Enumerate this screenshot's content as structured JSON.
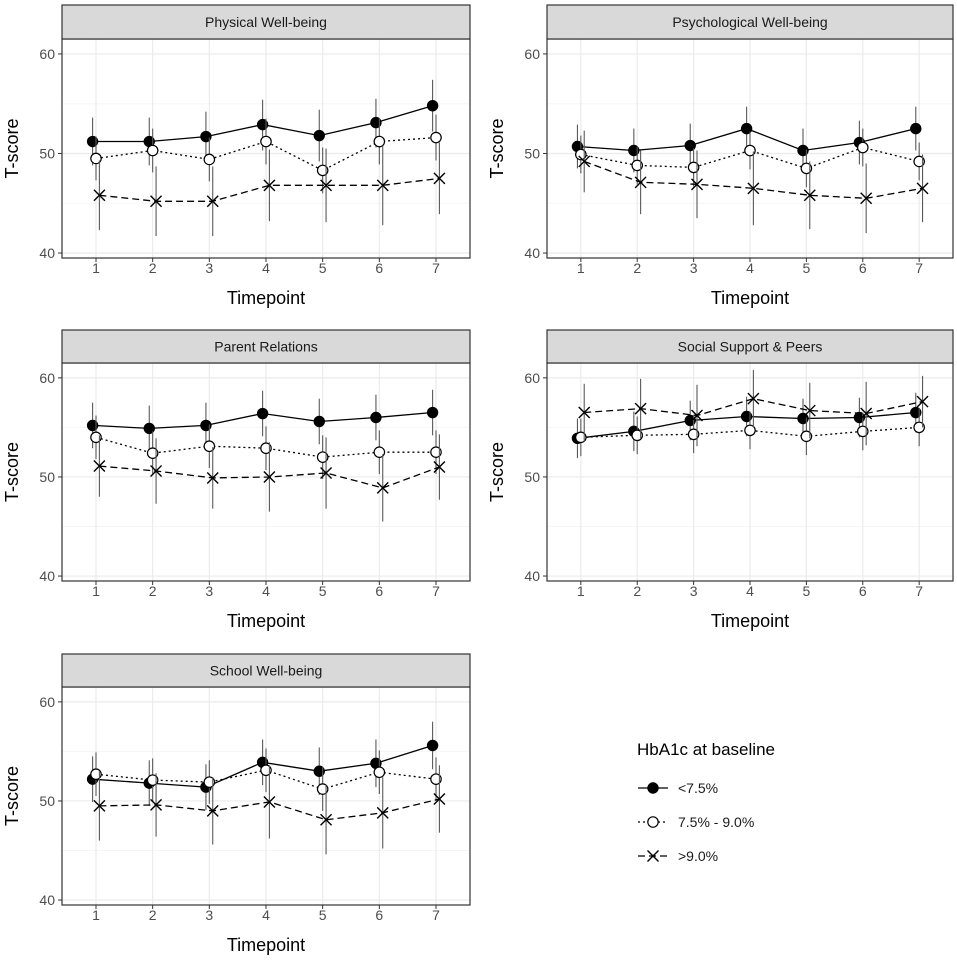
{
  "legend": {
    "title": "HbA1c at baseline",
    "entries": [
      {
        "label": "<7.5%",
        "marker": "filled-circle",
        "line": "solid"
      },
      {
        "label": "7.5% - 9.0%",
        "marker": "open-circle",
        "line": "dotted"
      },
      {
        "label": ">9.0%",
        "marker": "cross",
        "line": "dashed"
      }
    ]
  },
  "colors": {
    "strip_bg": "#d9d9d9",
    "panel_border": "#333333",
    "grid_major": "#ebebeb",
    "grid_minor": "#f5f5f5",
    "series": "#000000",
    "error_bar": "#595959",
    "tick_label": "#4d4d4d"
  },
  "chart_data": [
    {
      "type": "line",
      "title": "Physical Well-being",
      "xlabel": "Timepoint",
      "ylabel": "T-score",
      "x": [
        1,
        2,
        3,
        4,
        5,
        6,
        7
      ],
      "xticks": [
        "1",
        "2",
        "3",
        "4",
        "5",
        "6",
        "7"
      ],
      "yticks": [
        "40",
        "50",
        "60"
      ],
      "ylim": [
        39.5,
        61.5
      ],
      "series": [
        {
          "name": "<7.5%",
          "values": [
            51.2,
            51.2,
            51.7,
            52.9,
            51.8,
            53.1,
            54.8
          ],
          "lower": [
            48.8,
            48.8,
            49.1,
            50.3,
            49.2,
            50.6,
            52.2
          ],
          "upper": [
            53.6,
            53.6,
            54.2,
            55.4,
            54.4,
            55.5,
            57.4
          ]
        },
        {
          "name": "7.5% - 9.0%",
          "values": [
            49.5,
            50.3,
            49.4,
            51.2,
            48.3,
            51.2,
            51.6
          ],
          "lower": [
            47.3,
            48.1,
            47.2,
            48.9,
            46.0,
            48.9,
            49.3
          ],
          "upper": [
            51.7,
            52.5,
            51.6,
            53.5,
            50.6,
            53.5,
            53.9
          ]
        },
        {
          "name": ">9.0%",
          "values": [
            45.8,
            45.2,
            45.2,
            46.8,
            46.8,
            46.8,
            47.5
          ],
          "lower": [
            42.3,
            41.7,
            41.7,
            43.2,
            43.1,
            42.8,
            43.9
          ],
          "upper": [
            49.3,
            48.7,
            48.7,
            50.4,
            50.5,
            50.8,
            51.1
          ]
        }
      ]
    },
    {
      "type": "line",
      "title": "Psychological Well-being",
      "xlabel": "Timepoint",
      "ylabel": "T-score",
      "x": [
        1,
        2,
        3,
        4,
        5,
        6,
        7
      ],
      "xticks": [
        "1",
        "2",
        "3",
        "4",
        "5",
        "6",
        "7"
      ],
      "yticks": [
        "40",
        "50",
        "60"
      ],
      "ylim": [
        39.5,
        61.5
      ],
      "series": [
        {
          "name": "<7.5%",
          "values": [
            50.7,
            50.3,
            50.8,
            52.5,
            50.3,
            51.1,
            52.5
          ],
          "lower": [
            48.5,
            48.1,
            48.6,
            50.3,
            48.1,
            48.9,
            50.3
          ],
          "upper": [
            52.9,
            52.5,
            53.0,
            54.7,
            52.5,
            53.3,
            54.7
          ]
        },
        {
          "name": "7.5% - 9.0%",
          "values": [
            49.9,
            48.8,
            48.6,
            50.3,
            48.5,
            50.6,
            49.2
          ],
          "lower": [
            48.0,
            46.9,
            46.7,
            48.4,
            46.6,
            48.7,
            47.3
          ],
          "upper": [
            51.8,
            50.7,
            50.5,
            52.2,
            50.4,
            52.5,
            51.1
          ]
        },
        {
          "name": ">9.0%",
          "values": [
            49.2,
            47.1,
            46.9,
            46.5,
            45.8,
            45.5,
            46.5
          ],
          "lower": [
            46.1,
            43.9,
            43.5,
            42.8,
            42.4,
            42.0,
            43.1
          ],
          "upper": [
            52.3,
            50.3,
            50.3,
            50.2,
            49.2,
            49.0,
            49.9
          ]
        }
      ]
    },
    {
      "type": "line",
      "title": "Parent Relations",
      "xlabel": "Timepoint",
      "ylabel": "T-score",
      "x": [
        1,
        2,
        3,
        4,
        5,
        6,
        7
      ],
      "xticks": [
        "1",
        "2",
        "3",
        "4",
        "5",
        "6",
        "7"
      ],
      "yticks": [
        "40",
        "50",
        "60"
      ],
      "ylim": [
        39.5,
        61.5
      ],
      "series": [
        {
          "name": "<7.5%",
          "values": [
            55.2,
            54.9,
            55.2,
            56.4,
            55.6,
            56.0,
            56.5
          ],
          "lower": [
            52.9,
            52.6,
            52.9,
            54.1,
            53.3,
            53.7,
            54.2
          ],
          "upper": [
            57.5,
            57.2,
            57.5,
            58.7,
            57.9,
            58.3,
            58.8
          ]
        },
        {
          "name": "7.5% - 9.0%",
          "values": [
            54.0,
            52.4,
            53.1,
            52.9,
            52.0,
            52.5,
            52.5
          ],
          "lower": [
            51.8,
            50.2,
            50.9,
            50.7,
            49.8,
            50.3,
            50.3
          ],
          "upper": [
            56.2,
            54.6,
            55.3,
            55.1,
            54.2,
            54.7,
            54.7
          ]
        },
        {
          "name": ">9.0%",
          "values": [
            51.1,
            50.6,
            49.9,
            50.0,
            50.4,
            48.9,
            51.0
          ],
          "lower": [
            48.0,
            47.3,
            46.8,
            46.5,
            46.8,
            45.5,
            47.7
          ],
          "upper": [
            54.2,
            53.9,
            53.0,
            53.5,
            54.0,
            52.3,
            54.3
          ]
        }
      ]
    },
    {
      "type": "line",
      "title": "Social Support & Peers",
      "xlabel": "Timepoint",
      "ylabel": "T-score",
      "x": [
        1,
        2,
        3,
        4,
        5,
        6,
        7
      ],
      "xticks": [
        "1",
        "2",
        "3",
        "4",
        "5",
        "6",
        "7"
      ],
      "yticks": [
        "40",
        "50",
        "60"
      ],
      "ylim": [
        39.5,
        61.5
      ],
      "series": [
        {
          "name": "<7.5%",
          "values": [
            53.9,
            54.6,
            55.7,
            56.1,
            55.9,
            56.0,
            56.5
          ],
          "lower": [
            51.9,
            52.6,
            53.7,
            54.1,
            53.9,
            54.0,
            54.5
          ],
          "upper": [
            55.9,
            56.6,
            57.7,
            58.1,
            57.9,
            58.0,
            58.5
          ]
        },
        {
          "name": "7.5% - 9.0%",
          "values": [
            54.0,
            54.2,
            54.3,
            54.7,
            54.1,
            54.6,
            55.0
          ],
          "lower": [
            52.1,
            52.3,
            52.4,
            52.8,
            52.2,
            52.7,
            53.1
          ],
          "upper": [
            55.9,
            56.1,
            56.2,
            56.6,
            56.0,
            56.5,
            56.9
          ]
        },
        {
          "name": ">9.0%",
          "values": [
            56.5,
            56.9,
            56.2,
            57.9,
            56.7,
            56.4,
            57.6
          ],
          "lower": [
            53.6,
            53.9,
            53.1,
            55.0,
            53.9,
            53.2,
            55.0
          ],
          "upper": [
            59.4,
            59.9,
            59.3,
            60.8,
            59.5,
            59.6,
            60.2
          ]
        }
      ]
    },
    {
      "type": "line",
      "title": "School Well-being",
      "xlabel": "Timepoint",
      "ylabel": "T-score",
      "x": [
        1,
        2,
        3,
        4,
        5,
        6,
        7
      ],
      "xticks": [
        "1",
        "2",
        "3",
        "4",
        "5",
        "6",
        "7"
      ],
      "yticks": [
        "40",
        "50",
        "60"
      ],
      "ylim": [
        39.5,
        61.5
      ],
      "series": [
        {
          "name": "<7.5%",
          "values": [
            52.2,
            51.8,
            51.4,
            53.9,
            53.0,
            53.8,
            55.6
          ],
          "lower": [
            49.9,
            49.5,
            49.1,
            51.6,
            50.6,
            51.4,
            53.2
          ],
          "upper": [
            54.5,
            54.1,
            53.7,
            56.2,
            55.4,
            56.2,
            58.0
          ]
        },
        {
          "name": "7.5% - 9.0%",
          "values": [
            52.7,
            52.1,
            51.9,
            53.1,
            51.2,
            52.9,
            52.2
          ],
          "lower": [
            50.5,
            49.9,
            49.7,
            50.9,
            49.0,
            50.7,
            50.0
          ],
          "upper": [
            54.9,
            54.3,
            54.1,
            55.3,
            53.4,
            55.1,
            54.4
          ]
        },
        {
          "name": ">9.0%",
          "values": [
            49.5,
            49.6,
            49.0,
            49.9,
            48.1,
            48.8,
            50.2
          ],
          "lower": [
            46.0,
            46.4,
            45.6,
            46.2,
            44.6,
            45.2,
            46.8
          ],
          "upper": [
            53.0,
            52.8,
            52.4,
            53.6,
            51.6,
            52.4,
            53.6
          ]
        }
      ]
    }
  ]
}
